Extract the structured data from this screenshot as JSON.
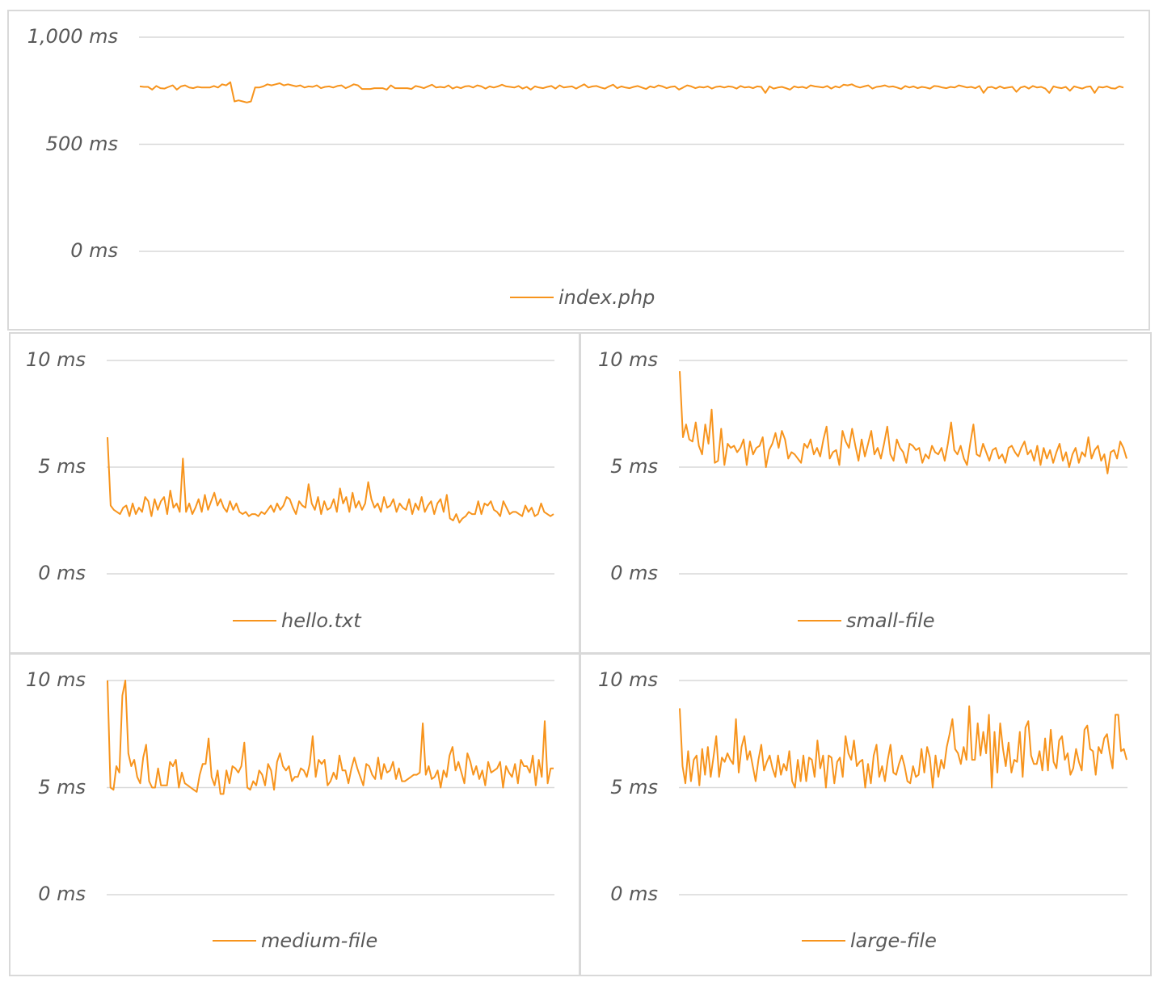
{
  "line_color": "#F7941D",
  "grid_color": "#d9d9d9",
  "chart_data": [
    {
      "type": "line",
      "title": "",
      "series": [
        {
          "name": "index.php",
          "values": [
            770,
            768,
            768,
            755,
            772,
            762,
            760,
            768,
            775,
            755,
            770,
            775,
            765,
            762,
            768,
            765,
            765,
            765,
            772,
            765,
            780,
            775,
            790,
            700,
            705,
            700,
            695,
            700,
            765,
            765,
            770,
            780,
            775,
            780,
            785,
            775,
            780,
            775,
            770,
            775,
            765,
            770,
            768,
            775,
            762,
            768,
            770,
            765,
            772,
            775,
            762,
            770,
            780,
            775,
            758,
            758,
            758,
            762,
            762,
            762,
            755,
            775,
            762,
            762,
            762,
            762,
            758,
            772,
            768,
            762,
            770,
            778,
            765,
            768,
            765,
            775,
            760,
            768,
            762,
            770,
            772,
            765,
            775,
            770,
            760,
            770,
            765,
            770,
            778,
            770,
            768,
            765,
            772,
            760,
            768,
            755,
            770,
            765,
            762,
            768,
            772,
            760,
            775,
            765,
            768,
            770,
            760,
            770,
            780,
            765,
            770,
            772,
            765,
            760,
            770,
            778,
            762,
            770,
            765,
            762,
            768,
            772,
            765,
            758,
            770,
            765,
            775,
            770,
            762,
            768,
            770,
            755,
            765,
            775,
            770,
            762,
            768,
            765,
            770,
            760,
            768,
            770,
            765,
            770,
            768,
            760,
            772,
            765,
            768,
            762,
            770,
            768,
            740,
            770,
            760,
            765,
            768,
            762,
            755,
            770,
            765,
            768,
            762,
            775,
            770,
            768,
            765,
            772,
            760,
            770,
            765,
            778,
            775,
            780,
            770,
            765,
            770,
            775,
            760,
            768,
            770,
            775,
            768,
            770,
            765,
            758,
            772,
            765,
            770,
            762,
            768,
            765,
            760,
            772,
            770,
            765,
            762,
            768,
            765,
            775,
            770,
            765,
            768,
            762,
            772,
            740,
            765,
            768,
            760,
            770,
            762,
            765,
            768,
            745,
            765,
            770,
            760,
            772,
            765,
            768,
            760,
            740,
            770,
            765,
            762,
            768,
            750,
            770,
            765,
            760,
            768,
            770,
            740,
            768,
            765,
            770,
            762,
            760,
            770,
            765
          ]
        }
      ],
      "categories_count": 250,
      "xlabel": "",
      "ylabel": "",
      "yticks": [
        "0 ms",
        "500 ms",
        "1,000 ms"
      ],
      "ylim": [
        0,
        1000
      ],
      "grid": true,
      "legend_position": "bottom"
    },
    {
      "type": "line",
      "series": [
        {
          "name": "hello.txt",
          "values": [
            6.4,
            3.2,
            3.0,
            2.9,
            2.8,
            3.1,
            3.2,
            2.7,
            3.3,
            2.8,
            3.1,
            2.9,
            3.6,
            3.4,
            2.7,
            3.5,
            3.0,
            3.4,
            3.6,
            2.8,
            3.9,
            3.1,
            3.3,
            2.9,
            5.4,
            2.9,
            3.3,
            2.8,
            3.1,
            3.5,
            2.9,
            3.7,
            3.0,
            3.4,
            3.8,
            3.2,
            3.5,
            3.1,
            2.9,
            3.4,
            3.0,
            3.3,
            2.9,
            2.8,
            2.9,
            2.7,
            2.8,
            2.8,
            2.7,
            2.9,
            2.8,
            3.0,
            3.2,
            2.9,
            3.3,
            3.0,
            3.2,
            3.6,
            3.5,
            3.1,
            2.8,
            3.4,
            3.2,
            3.1,
            4.2,
            3.3,
            3.0,
            3.6,
            2.8,
            3.4,
            3.0,
            3.1,
            3.5,
            2.9,
            4.0,
            3.3,
            3.6,
            2.9,
            3.8,
            3.1,
            3.4,
            3.0,
            3.3,
            4.3,
            3.5,
            3.1,
            3.3,
            2.9,
            3.6,
            3.1,
            3.2,
            3.5,
            2.9,
            3.3,
            3.1,
            3.0,
            3.5,
            2.8,
            3.3,
            3.0,
            3.6,
            2.9,
            3.2,
            3.4,
            2.8,
            3.3,
            3.5,
            2.9,
            3.7,
            2.6,
            2.5,
            2.8,
            2.4,
            2.6,
            2.7,
            2.9,
            2.8,
            2.8,
            3.4,
            2.8,
            3.3,
            3.2,
            3.4,
            3.0,
            2.9,
            2.7,
            3.4,
            3.1,
            2.8,
            2.9,
            2.9,
            2.8,
            2.7,
            3.2,
            2.9,
            3.1,
            2.7,
            2.8,
            3.3,
            2.9,
            2.8,
            2.7,
            2.8
          ]
        }
      ],
      "yticks": [
        "0 ms",
        "5 ms",
        "10 ms"
      ],
      "ylim": [
        0,
        10
      ],
      "grid": true,
      "legend_position": "bottom"
    },
    {
      "type": "line",
      "series": [
        {
          "name": "small-file",
          "values": [
            9.5,
            6.4,
            7.0,
            6.3,
            6.2,
            7.1,
            6.0,
            5.6,
            7.0,
            6.1,
            7.7,
            5.2,
            5.3,
            6.8,
            5.1,
            6.1,
            5.9,
            6.0,
            5.7,
            5.9,
            6.3,
            5.1,
            6.2,
            5.6,
            5.9,
            6.0,
            6.4,
            5.0,
            5.8,
            6.1,
            6.6,
            5.9,
            6.7,
            6.3,
            5.4,
            5.7,
            5.6,
            5.4,
            5.2,
            6.1,
            5.9,
            6.3,
            5.6,
            5.9,
            5.5,
            6.3,
            6.9,
            5.4,
            5.7,
            5.8,
            5.1,
            6.7,
            6.2,
            5.9,
            6.8,
            6.0,
            5.3,
            6.3,
            5.5,
            6.1,
            6.7,
            5.6,
            5.9,
            5.4,
            6.1,
            6.9,
            5.6,
            5.3,
            6.3,
            5.9,
            5.7,
            5.2,
            6.1,
            6.0,
            5.8,
            5.9,
            5.2,
            5.6,
            5.4,
            6.0,
            5.7,
            5.6,
            5.9,
            5.3,
            6.1,
            7.1,
            5.8,
            5.6,
            6.0,
            5.4,
            5.1,
            6.1,
            7.0,
            5.6,
            5.5,
            6.1,
            5.7,
            5.3,
            5.8,
            5.9,
            5.4,
            5.6,
            5.2,
            5.9,
            6.0,
            5.7,
            5.5,
            5.9,
            6.2,
            5.6,
            5.8,
            5.3,
            6.0,
            5.1,
            5.9,
            5.4,
            5.8,
            5.2,
            5.7,
            6.1,
            5.3,
            5.7,
            5.0,
            5.6,
            5.9,
            5.2,
            5.7,
            5.5,
            6.4,
            5.4,
            5.8,
            6.0,
            5.3,
            5.6,
            4.7,
            5.7,
            5.8,
            5.4,
            6.2,
            5.9,
            5.4
          ]
        }
      ],
      "yticks": [
        "0 ms",
        "5 ms",
        "10 ms"
      ],
      "ylim": [
        0,
        10
      ],
      "grid": true,
      "legend_position": "bottom"
    },
    {
      "type": "line",
      "series": [
        {
          "name": "medium-file",
          "values": [
            10.0,
            5.0,
            4.9,
            6.0,
            5.7,
            9.3,
            10.0,
            6.6,
            6.0,
            6.3,
            5.5,
            5.2,
            6.4,
            7.0,
            5.3,
            5.0,
            5.0,
            5.9,
            5.1,
            5.1,
            5.1,
            6.2,
            6.0,
            6.3,
            5.0,
            5.7,
            5.2,
            5.1,
            5.0,
            4.9,
            4.8,
            5.6,
            6.1,
            6.1,
            7.3,
            5.5,
            5.1,
            5.8,
            4.7,
            4.7,
            5.8,
            5.2,
            6.0,
            5.9,
            5.7,
            6.0,
            7.1,
            5.0,
            4.9,
            5.3,
            5.1,
            5.8,
            5.6,
            5.1,
            6.1,
            5.8,
            4.9,
            6.2,
            6.6,
            6.0,
            5.8,
            6.0,
            5.3,
            5.5,
            5.5,
            5.9,
            5.8,
            5.5,
            6.1,
            7.4,
            5.5,
            6.3,
            6.1,
            6.3,
            5.1,
            5.3,
            5.7,
            5.4,
            6.5,
            5.8,
            5.8,
            5.2,
            5.9,
            6.4,
            5.9,
            5.5,
            5.1,
            6.1,
            6.0,
            5.6,
            5.4,
            6.4,
            5.4,
            6.1,
            5.7,
            5.8,
            6.2,
            5.4,
            5.9,
            5.3,
            5.3,
            5.4,
            5.5,
            5.6,
            5.6,
            5.7,
            8.0,
            5.6,
            6.0,
            5.4,
            5.5,
            5.8,
            5.0,
            5.8,
            5.5,
            6.5,
            6.9,
            5.8,
            6.2,
            5.7,
            5.2,
            6.6,
            6.2,
            5.6,
            6.0,
            5.4,
            5.8,
            5.1,
            6.2,
            5.7,
            5.8,
            5.9,
            6.2,
            5.0,
            6.0,
            5.7,
            5.5,
            6.1,
            5.2,
            6.3,
            6.0,
            6.0,
            5.7,
            6.5,
            5.1,
            6.3,
            5.5,
            8.1,
            5.2,
            5.9,
            5.9
          ]
        }
      ],
      "yticks": [
        "0 ms",
        "5 ms",
        "10 ms"
      ],
      "ylim": [
        0,
        10
      ],
      "grid": true,
      "legend_position": "bottom"
    },
    {
      "type": "line",
      "series": [
        {
          "name": "large-file",
          "values": [
            8.7,
            6.0,
            5.2,
            6.7,
            5.3,
            6.3,
            6.5,
            5.1,
            6.8,
            5.6,
            6.9,
            5.5,
            6.4,
            7.4,
            5.5,
            6.4,
            6.2,
            6.6,
            6.3,
            6.1,
            8.2,
            5.7,
            6.9,
            7.4,
            6.3,
            6.7,
            6.0,
            5.3,
            6.3,
            7.0,
            5.8,
            6.2,
            6.5,
            5.9,
            5.5,
            6.5,
            5.6,
            6.1,
            5.8,
            6.7,
            5.3,
            5.0,
            6.3,
            5.3,
            6.5,
            5.3,
            6.4,
            6.3,
            5.5,
            7.2,
            5.9,
            6.5,
            5.0,
            6.5,
            6.4,
            5.2,
            6.2,
            6.4,
            5.5,
            7.4,
            6.6,
            6.3,
            7.2,
            6.0,
            6.2,
            6.3,
            5.0,
            6.1,
            5.2,
            6.5,
            7.0,
            5.5,
            6.0,
            5.3,
            6.3,
            7.0,
            5.7,
            5.6,
            6.1,
            6.5,
            6.0,
            5.3,
            5.2,
            6.0,
            5.5,
            5.6,
            6.8,
            5.7,
            6.9,
            6.4,
            5.0,
            6.5,
            5.5,
            6.3,
            5.9,
            6.9,
            7.5,
            8.2,
            6.8,
            6.6,
            6.1,
            6.9,
            6.3,
            8.8,
            6.3,
            6.3,
            8.0,
            6.5,
            7.6,
            6.6,
            8.4,
            5.0,
            7.6,
            5.7,
            8.0,
            6.8,
            6.0,
            7.1,
            5.7,
            6.3,
            6.2,
            7.6,
            5.5,
            7.8,
            8.1,
            6.5,
            6.1,
            6.1,
            6.7,
            5.8,
            7.3,
            5.8,
            7.7,
            6.2,
            5.9,
            7.2,
            7.4,
            6.3,
            6.6,
            5.6,
            5.9,
            6.8,
            6.2,
            5.8,
            7.7,
            7.9,
            6.8,
            6.7,
            5.6,
            6.9,
            6.6,
            7.3,
            7.5,
            6.6,
            5.9,
            8.4,
            8.4,
            6.7,
            6.8,
            6.3
          ]
        }
      ],
      "yticks": [
        "0 ms",
        "5 ms",
        "10 ms"
      ],
      "ylim": [
        0,
        10
      ],
      "grid": true,
      "legend_position": "bottom"
    }
  ],
  "panels": [
    {
      "legend": "index.php",
      "yticks": [
        "1,000 ms",
        "500 ms",
        "0 ms"
      ]
    },
    {
      "legend": "hello.txt",
      "yticks": [
        "10 ms",
        "5 ms",
        "0 ms"
      ]
    },
    {
      "legend": "small-file",
      "yticks": [
        "10 ms",
        "5 ms",
        "0 ms"
      ]
    },
    {
      "legend": "medium-file",
      "yticks": [
        "10 ms",
        "5 ms",
        "0 ms"
      ]
    },
    {
      "legend": "large-file",
      "yticks": [
        "10 ms",
        "5 ms",
        "0 ms"
      ]
    }
  ]
}
